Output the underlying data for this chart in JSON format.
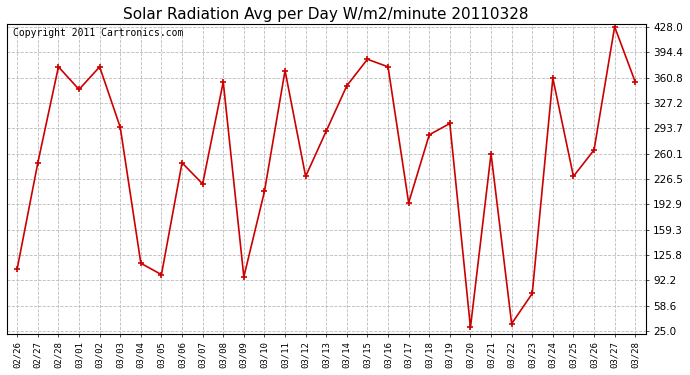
{
  "title": "Solar Radiation Avg per Day W/m2/minute 20110328",
  "copyright": "Copyright 2011 Cartronics.com",
  "dates": [
    "02/26",
    "02/27",
    "02/28",
    "03/01",
    "03/02",
    "03/03",
    "03/04",
    "03/05",
    "03/06",
    "03/07",
    "03/08",
    "03/09",
    "03/10",
    "03/11",
    "03/12",
    "03/13",
    "03/14",
    "03/15",
    "03/16",
    "03/17",
    "03/18",
    "03/19",
    "03/20",
    "03/21",
    "03/22",
    "03/23",
    "03/24",
    "03/25",
    "03/26",
    "03/27",
    "03/28"
  ],
  "values": [
    108,
    248,
    375,
    345,
    375,
    295,
    115,
    100,
    248,
    220,
    355,
    97,
    210,
    370,
    230,
    290,
    350,
    385,
    375,
    195,
    285,
    300,
    30,
    260,
    35,
    75,
    360,
    230,
    265,
    428,
    355
  ],
  "line_color": "#cc0000",
  "marker_color": "#cc0000",
  "bg_color": "#ffffff",
  "plot_bg_color": "#ffffff",
  "grid_color": "#bbbbbb",
  "title_fontsize": 11,
  "copyright_fontsize": 7,
  "yticks": [
    25.0,
    58.6,
    92.2,
    125.8,
    159.3,
    192.9,
    226.5,
    260.1,
    293.7,
    327.2,
    360.8,
    394.4,
    428.0
  ],
  "ylim": [
    25.0,
    428.0
  ]
}
